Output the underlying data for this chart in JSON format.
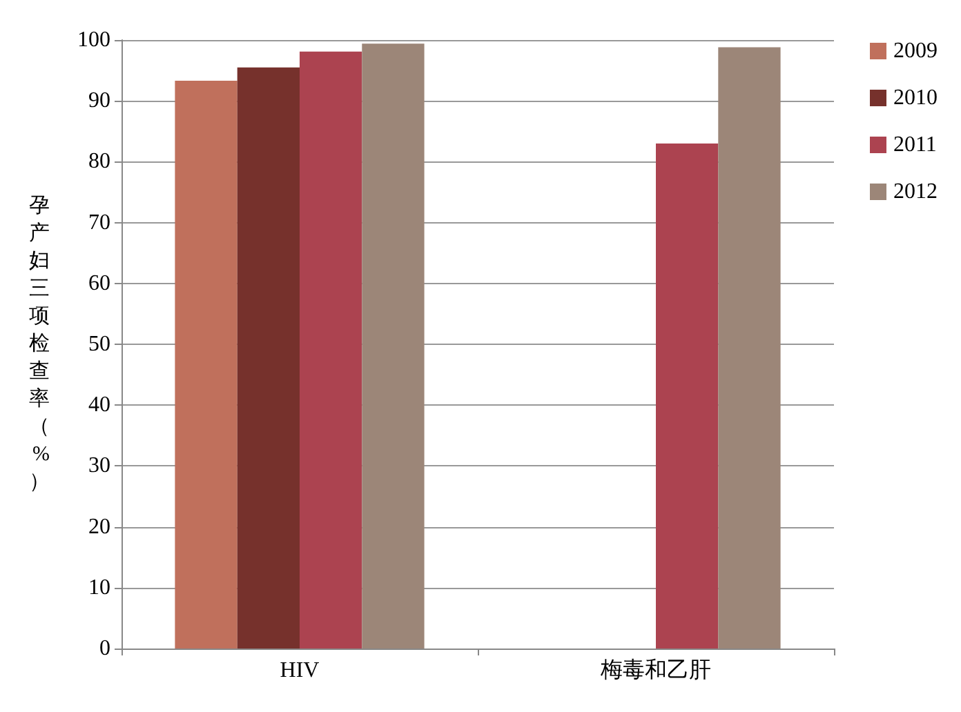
{
  "chart_data": {
    "type": "bar",
    "ylabel": "孕产妇三项检查率（%）",
    "categories": [
      "HIV",
      "梅毒和乙肝"
    ],
    "series": [
      {
        "name": "2009",
        "color": "#c0705c",
        "values": [
          93.3,
          null
        ]
      },
      {
        "name": "2010",
        "color": "#76312c",
        "values": [
          95.5,
          null
        ]
      },
      {
        "name": "2011",
        "color": "#ac4350",
        "values": [
          98.1,
          83
        ]
      },
      {
        "name": "2012",
        "color": "#9c8678",
        "values": [
          99.4,
          98.8
        ]
      }
    ],
    "ylim": [
      0,
      100
    ],
    "yticks": [
      0,
      10,
      20,
      30,
      40,
      50,
      60,
      70,
      80,
      90,
      100
    ],
    "grid": "y",
    "legend": "right"
  }
}
